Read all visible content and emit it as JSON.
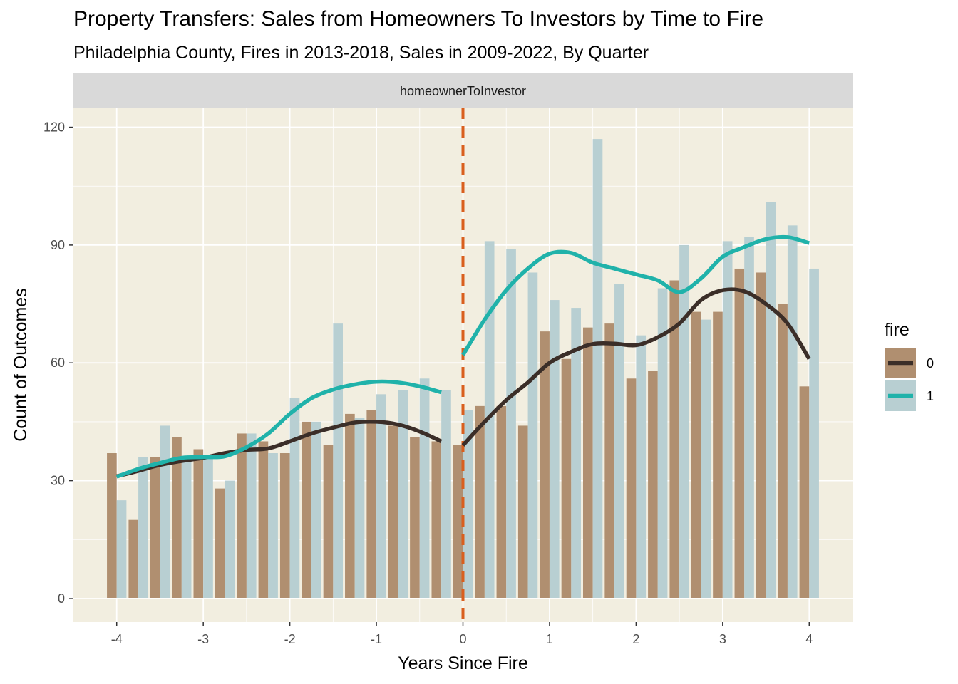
{
  "chart_data": {
    "type": "bar",
    "title": "Property Transfers: Sales from Homeowners To Investors by Time to Fire",
    "subtitle": "Philadelphia County, Fires in 2013-2018, Sales in 2009-2022, By Quarter",
    "facet_label": "homeownerToInvestor",
    "xlabel": "Years Since Fire",
    "ylabel": "Count of Outcomes",
    "xlim": [
      -4.5,
      4.5
    ],
    "ylim": [
      -6,
      125
    ],
    "x_ticks": [
      -4,
      -3,
      -2,
      -1,
      0,
      1,
      2,
      3,
      4
    ],
    "x_tick_labels": [
      "-4",
      "-3",
      "-2",
      "-1",
      "0",
      "1",
      "2",
      "3",
      "4"
    ],
    "y_ticks": [
      0,
      30,
      60,
      90,
      120
    ],
    "y_tick_labels": [
      "0",
      "30",
      "60",
      "90",
      "120"
    ],
    "grid": true,
    "legend": {
      "title": "fire",
      "position": "right"
    },
    "vline": {
      "x": 0,
      "style": "dashed",
      "color": "#d95f1e"
    },
    "x": [
      -4,
      -3.75,
      -3.5,
      -3.25,
      -3,
      -2.75,
      -2.5,
      -2.25,
      -2,
      -1.75,
      -1.5,
      -1.25,
      -1,
      -0.75,
      -0.5,
      -0.25,
      0,
      0.25,
      0.5,
      0.75,
      1,
      1.25,
      1.5,
      1.75,
      2,
      2.25,
      2.5,
      2.75,
      3,
      3.25,
      3.5,
      3.75,
      4
    ],
    "series": [
      {
        "name": "0",
        "bar_color": "#b08f70",
        "line_color": "#3b2e28",
        "values": [
          37,
          20,
          36,
          41,
          38,
          28,
          42,
          40,
          37,
          45,
          39,
          47,
          48,
          44,
          41,
          40,
          39,
          49,
          49,
          44,
          68,
          61,
          69,
          70,
          56,
          58,
          81,
          73,
          73,
          84,
          83,
          75,
          54
        ],
        "smooth_pre": [
          [
            -4,
            31.1
          ],
          [
            -3.75,
            32.5
          ],
          [
            -3.5,
            34.0
          ],
          [
            -3.25,
            35.0
          ],
          [
            -3,
            35.8
          ],
          [
            -2.75,
            37.0
          ],
          [
            -2.5,
            37.8
          ],
          [
            -2.25,
            38.2
          ],
          [
            -2,
            40.0
          ],
          [
            -1.75,
            42.0
          ],
          [
            -1.5,
            43.5
          ],
          [
            -1.25,
            44.8
          ],
          [
            -1,
            45.0
          ],
          [
            -0.75,
            44.3
          ],
          [
            -0.5,
            42.5
          ],
          [
            -0.25,
            40.0
          ]
        ],
        "smooth_post": [
          [
            0,
            39.0
          ],
          [
            0.25,
            45.0
          ],
          [
            0.5,
            50.5
          ],
          [
            0.75,
            55.0
          ],
          [
            1,
            60.0
          ],
          [
            1.25,
            62.8
          ],
          [
            1.5,
            64.8
          ],
          [
            1.75,
            64.9
          ],
          [
            2,
            64.5
          ],
          [
            2.25,
            66.5
          ],
          [
            2.5,
            70.0
          ],
          [
            2.75,
            76.0
          ],
          [
            3,
            78.5
          ],
          [
            3.25,
            78.2
          ],
          [
            3.5,
            75.0
          ],
          [
            3.75,
            70.0
          ],
          [
            4,
            61.0
          ]
        ]
      },
      {
        "name": "1",
        "bar_color": "#b8cfd2",
        "line_color": "#20b2aa",
        "values": [
          25,
          36,
          44,
          36,
          36,
          30,
          42,
          37,
          51,
          45,
          70,
          46,
          52,
          53,
          56,
          53,
          48,
          91,
          89,
          83,
          76,
          74,
          117,
          80,
          67,
          79,
          90,
          71,
          91,
          92,
          101,
          95,
          84
        ],
        "smooth_pre": [
          [
            -4,
            31.0
          ],
          [
            -3.75,
            33.0
          ],
          [
            -3.5,
            34.5
          ],
          [
            -3.25,
            35.8
          ],
          [
            -3,
            36.0
          ],
          [
            -2.75,
            36.2
          ],
          [
            -2.5,
            38.5
          ],
          [
            -2.25,
            42.0
          ],
          [
            -2,
            47.0
          ],
          [
            -1.75,
            51.0
          ],
          [
            -1.5,
            53.2
          ],
          [
            -1.25,
            54.5
          ],
          [
            -1,
            55.2
          ],
          [
            -0.75,
            55.0
          ],
          [
            -0.5,
            54.0
          ],
          [
            -0.25,
            52.5
          ]
        ],
        "smooth_post": [
          [
            0,
            62.0
          ],
          [
            0.25,
            71.0
          ],
          [
            0.5,
            78.5
          ],
          [
            0.75,
            84.0
          ],
          [
            1,
            87.8
          ],
          [
            1.25,
            88.0
          ],
          [
            1.5,
            85.5
          ],
          [
            1.75,
            84.0
          ],
          [
            2,
            82.5
          ],
          [
            2.25,
            81.0
          ],
          [
            2.5,
            78.0
          ],
          [
            2.75,
            81.5
          ],
          [
            3,
            87.0
          ],
          [
            3.25,
            89.5
          ],
          [
            3.5,
            91.5
          ],
          [
            3.75,
            92.0
          ],
          [
            4,
            90.5
          ]
        ]
      }
    ]
  },
  "colors": {
    "panel_bg": "#f2eee0",
    "grid": "#ffffff",
    "strip_bg": "#d9d9d9",
    "axis_tick": "#333333"
  }
}
